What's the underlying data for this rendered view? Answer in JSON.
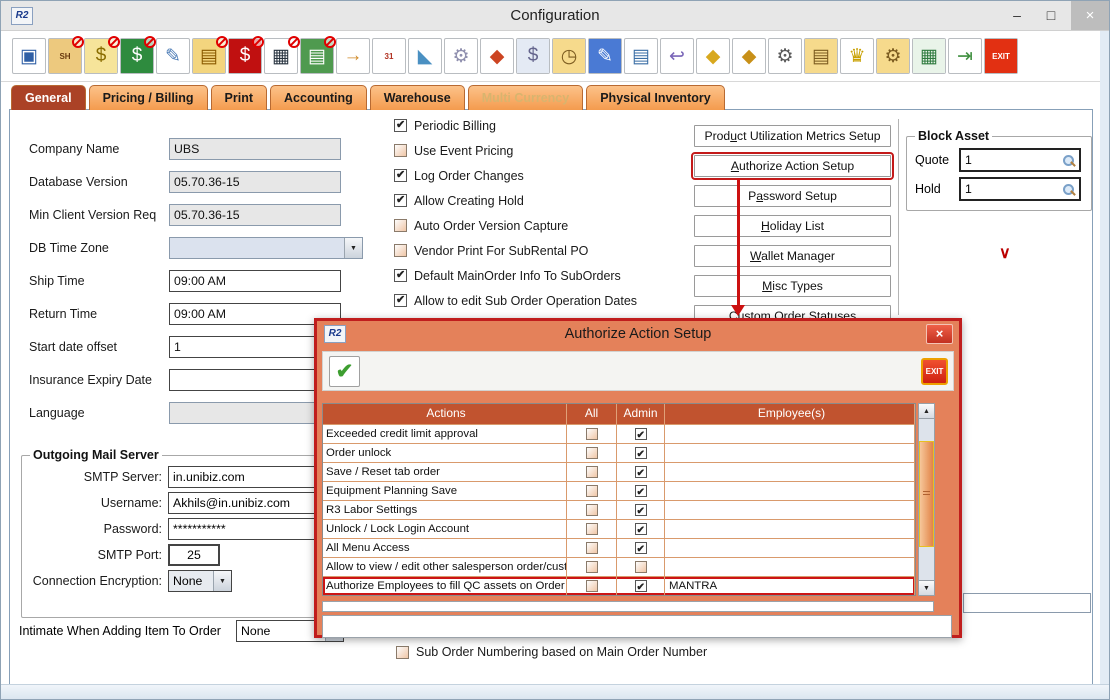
{
  "window": {
    "title": "Configuration",
    "badge": "R2",
    "controls": {
      "minimize": "–",
      "maximize": "□",
      "close": "×"
    }
  },
  "glyphs": {
    "check": "✔",
    "dd": "▼",
    "up": "▲",
    "down": "▼",
    "green_check": "✔",
    "chevron": "∨"
  },
  "colors": {
    "tab_orange": "#f49b4e",
    "active_tab": "#ab4226",
    "modal_background": "#e4815a",
    "modal_border": "#c01d1d",
    "table_header": "#c1532f",
    "highlight_red": "#cc1414"
  },
  "toolbar": {
    "icons": [
      {
        "name": "save-icon",
        "glyph": "▣",
        "fg": "#2f5fa5",
        "badge": false
      },
      {
        "name": "shipping-order-icon",
        "glyph": "SH",
        "cls": "txt",
        "fg": "#6a3a10",
        "bg": "#edc97e",
        "badge": true
      },
      {
        "name": "coins-icon",
        "glyph": "$",
        "fg": "#8a6d00",
        "bg": "#f6e49a",
        "badge": true
      },
      {
        "name": "invoice-icon",
        "glyph": "$",
        "fg": "#ffffff",
        "bg": "#2e8b3e",
        "badge": true
      },
      {
        "name": "edit-document-icon",
        "glyph": "✎",
        "fg": "#4a7ab5",
        "badge": false
      },
      {
        "name": "order-form-icon",
        "glyph": "▤",
        "fg": "#8a5a00",
        "bg": "#f3d57e",
        "badge": true
      },
      {
        "name": "payment-icon",
        "glyph": "$",
        "fg": "#ffffff",
        "bg": "#c01010",
        "badge": true
      },
      {
        "name": "schedule-grid-icon",
        "glyph": "▦",
        "fg": "#26323e",
        "badge": true
      },
      {
        "name": "spreadsheet-icon",
        "glyph": "▤",
        "fg": "#ffffff",
        "bg": "#4f9a4f",
        "badge": true
      },
      {
        "name": "login-lock-icon",
        "glyph": "→",
        "fg": "#d08a28",
        "badge": false
      },
      {
        "name": "date-range-icon",
        "glyph": "31",
        "cls": "txt",
        "fg": "#b03020",
        "badge": false
      },
      {
        "name": "measurement-ruler-icon",
        "glyph": "◣",
        "fg": "#4a90c2",
        "badge": false
      },
      {
        "name": "settings-gears-icon",
        "glyph": "⚙",
        "fg": "#8f8fae",
        "badge": false
      },
      {
        "name": "assembly-cubes-icon",
        "glyph": "◆",
        "fg": "#cc4422",
        "badge": false
      },
      {
        "name": "price-tag-settings-icon",
        "glyph": "$",
        "fg": "#64648c",
        "bg": "#e4eaf4",
        "badge": false
      },
      {
        "name": "history-folder-icon",
        "glyph": "◷",
        "fg": "#7c5c20",
        "bg": "#f6da8c",
        "badge": false
      },
      {
        "name": "browser-edit-icon",
        "glyph": "✎",
        "fg": "#ffffff",
        "bg": "#4a7ad4",
        "badge": false
      },
      {
        "name": "document-assembly-icon",
        "glyph": "▤",
        "fg": "#3a6ea5",
        "badge": false
      },
      {
        "name": "document-return-icon",
        "glyph": "↩",
        "fg": "#7a66b8",
        "badge": false
      },
      {
        "name": "search-shield-icon",
        "glyph": "◆",
        "fg": "#d8a81e",
        "badge": false
      },
      {
        "name": "user-shield-icon",
        "glyph": "◆",
        "fg": "#c89018",
        "badge": false
      },
      {
        "name": "barcode-scanner-settings-icon",
        "glyph": "⚙",
        "fg": "#5a5a5a",
        "badge": false
      },
      {
        "name": "secure-folder-icon",
        "glyph": "▤",
        "fg": "#7c5c20",
        "bg": "#f6da8c",
        "badge": false
      },
      {
        "name": "awards-assembly-icon",
        "glyph": "♛",
        "fg": "#c8a000",
        "badge": false
      },
      {
        "name": "folder-settings-icon",
        "glyph": "⚙",
        "fg": "#7c5c20",
        "bg": "#f6da8c",
        "badge": false
      },
      {
        "name": "calculator-settings-icon",
        "glyph": "▦",
        "fg": "#2e7a3e",
        "bg": "#e9f4e9",
        "badge": false
      },
      {
        "name": "document-export-icon",
        "glyph": "⇥",
        "fg": "#3f8f3f",
        "badge": false
      },
      {
        "name": "exit-icon",
        "glyph": "EXIT",
        "cls": "txt",
        "fg": "#ffffff",
        "bg": "#e23012",
        "badge": false
      }
    ]
  },
  "tabs": [
    {
      "name": "tab-general",
      "label": "General",
      "state": "active"
    },
    {
      "name": "tab-pricing-billing",
      "label": "Pricing / Billing",
      "state": "normal"
    },
    {
      "name": "tab-print",
      "label": "Print",
      "state": "normal"
    },
    {
      "name": "tab-accounting",
      "label": "Accounting",
      "state": "normal"
    },
    {
      "name": "tab-warehouse",
      "label": "Warehouse",
      "state": "normal"
    },
    {
      "name": "tab-multi-currency",
      "label": "Multi Currency",
      "state": "disabled"
    },
    {
      "name": "tab-physical-inventory",
      "label": "Physical Inventory",
      "state": "normal"
    }
  ],
  "fields": [
    {
      "name": "company-name-field",
      "label": "Company Name",
      "value": "UBS",
      "type": "readonly"
    },
    {
      "name": "database-version-field",
      "label": "Database Version",
      "value": "05.70.36-15",
      "type": "readonly"
    },
    {
      "name": "min-client-version-field",
      "label": "Min Client Version Req",
      "value": "05.70.36-15",
      "type": "readonly"
    },
    {
      "name": "db-time-zone-dropdown",
      "label": "DB Time Zone",
      "value": "",
      "type": "dropdown"
    },
    {
      "name": "ship-time-field",
      "label": "Ship Time",
      "value": "09:00 AM",
      "type": "text"
    },
    {
      "name": "return-time-field",
      "label": "Return Time",
      "value": "09:00 AM",
      "type": "text"
    },
    {
      "name": "start-date-offset-field",
      "label": "Start date offset",
      "value": "1",
      "type": "text"
    },
    {
      "name": "insurance-expiry-field",
      "label": "Insurance Expiry Date",
      "value": "",
      "type": "text"
    },
    {
      "name": "language-lookup-field",
      "label": "Language",
      "value": "",
      "type": "lookup"
    }
  ],
  "mail": {
    "legend": "Outgoing Mail Server",
    "rows": [
      {
        "name": "smtp-server-field",
        "label": "SMTP Server:",
        "value": "in.unibiz.com",
        "w": "wide"
      },
      {
        "name": "username-field",
        "label": "Username:",
        "value": "Akhils@in.unibiz.com",
        "w": "wide"
      },
      {
        "name": "password-field",
        "label": "Password:",
        "value": "***********",
        "w": "wide"
      },
      {
        "name": "smtp-port-field",
        "label": "SMTP Port:",
        "value": "25",
        "w": "narrow"
      },
      {
        "name": "connection-encryption-dropdown",
        "label": "Connection Encryption:",
        "value": "None",
        "w": "dd"
      }
    ]
  },
  "checkboxes": [
    {
      "name": "periodic-billing-checkbox",
      "label": "Periodic Billing",
      "checked": true
    },
    {
      "name": "use-event-pricing-checkbox",
      "label": "Use Event Pricing",
      "checked": false
    },
    {
      "name": "log-order-changes-checkbox",
      "label": "Log Order Changes",
      "checked": true
    },
    {
      "name": "allow-creating-hold-checkbox",
      "label": "Allow Creating Hold",
      "checked": true
    },
    {
      "name": "auto-order-version-capture-checkbox",
      "label": "Auto Order Version Capture",
      "checked": false
    },
    {
      "name": "vendor-print-subrental-po-checkbox",
      "label": "Vendor Print For SubRental PO",
      "checked": false
    },
    {
      "name": "default-mainorder-info-checkbox",
      "label": "Default MainOrder Info To SubOrders",
      "checked": true
    },
    {
      "name": "allow-edit-suborder-dates-checkbox",
      "label": "Allow to edit Sub Order Operation Dates",
      "checked": true
    }
  ],
  "action_buttons": [
    {
      "name": "product-utilization-metrics-button",
      "pre": "Prod",
      "accel": "u",
      "post": "ct Utilization Metrics Setup",
      "highlight": false
    },
    {
      "name": "authorize-action-setup-button",
      "pre": "",
      "accel": "A",
      "post": "uthorize Action Setup",
      "highlight": true
    },
    {
      "name": "password-setup-button",
      "pre": "P",
      "accel": "a",
      "post": "ssword Setup",
      "highlight": false
    },
    {
      "name": "holiday-list-button",
      "pre": "",
      "accel": "H",
      "post": "oliday List",
      "highlight": false
    },
    {
      "name": "wallet-manager-button",
      "pre": "",
      "accel": "W",
      "post": "allet Manager",
      "highlight": false
    },
    {
      "name": "misc-types-button",
      "pre": "",
      "accel": "M",
      "post": "isc Types",
      "highlight": false
    },
    {
      "name": "custom-order-statuses-button",
      "pre": "Custom Order Statuses",
      "accel": "",
      "post": "",
      "highlight": false
    }
  ],
  "block_asset": {
    "legend": "Block Asset",
    "rows": [
      {
        "name": "quote-field",
        "label": "Quote",
        "value": "1"
      },
      {
        "name": "hold-field",
        "label": "Hold",
        "value": "1"
      }
    ]
  },
  "intimate": {
    "label": "Intimate When Adding Item To Order",
    "value": "None"
  },
  "sub_order": {
    "label": "Sub Order Numbering based on Main Order Number",
    "checked": false
  },
  "modal": {
    "badge": "R2",
    "title": "Authorize Action Setup",
    "close": "×",
    "exit_label": "EXIT",
    "columns": [
      {
        "label": "Actions",
        "cls": "c1"
      },
      {
        "label": "All",
        "cls": "c2"
      },
      {
        "label": "Admin",
        "cls": "c3"
      },
      {
        "label": "Employee(s)",
        "cls": "c4"
      }
    ],
    "rows": [
      {
        "action": "Exceeded credit limit approval",
        "all": false,
        "admin": true,
        "employees": "",
        "highlight": false
      },
      {
        "action": "Order unlock",
        "all": false,
        "admin": true,
        "employees": "",
        "highlight": false
      },
      {
        "action": "Save / Reset tab order",
        "all": false,
        "admin": true,
        "employees": "",
        "highlight": false
      },
      {
        "action": "Equipment Planning Save",
        "all": false,
        "admin": true,
        "employees": "",
        "highlight": false
      },
      {
        "action": "R3 Labor Settings",
        "all": false,
        "admin": true,
        "employees": "",
        "highlight": false
      },
      {
        "action": "Unlock / Lock Login Account",
        "all": false,
        "admin": true,
        "employees": "",
        "highlight": false
      },
      {
        "action": "All Menu Access",
        "all": false,
        "admin": true,
        "employees": "",
        "highlight": false
      },
      {
        "action": "Allow to view / edit other salesperson order/customer",
        "all": false,
        "admin": false,
        "employees": "",
        "highlight": false
      },
      {
        "action": "Authorize Employees to fill QC assets on Order",
        "all": false,
        "admin": true,
        "employees": "MANTRA",
        "highlight": true
      }
    ]
  }
}
